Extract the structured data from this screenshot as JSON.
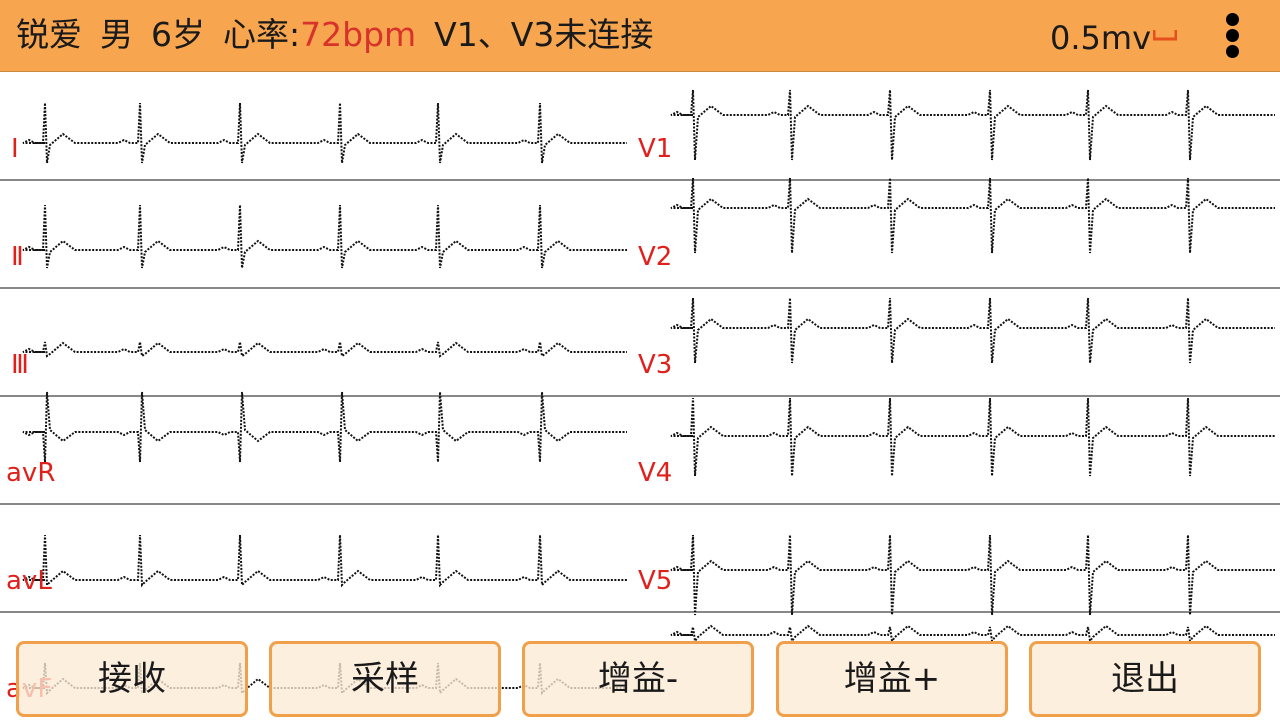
{
  "header": {
    "name": "锐爱",
    "gender": "男",
    "age": "6岁",
    "hr_label": "心率:",
    "hr_value": "72bpm",
    "lead_status": "V1、V3未连接",
    "gain": "0.5mv",
    "menu_icon": "more-vert-icon",
    "scale_icon": "calibration-bracket-icon"
  },
  "leads_left": [
    "Ⅰ",
    "Ⅱ",
    "Ⅲ",
    "avR",
    "avL",
    "avF"
  ],
  "leads_right": [
    "V1",
    "V2",
    "V3",
    "V4",
    "V5"
  ],
  "buttons": {
    "receive": "接收",
    "sample": "采样",
    "gain_down": "增益-",
    "gain_up": "增益+",
    "exit": "退出"
  },
  "colors": {
    "header_bg": "#f7a54f",
    "heart_rate": "#d8322c",
    "lead_label": "#e0201b",
    "button_border": "#f0a04a"
  }
}
